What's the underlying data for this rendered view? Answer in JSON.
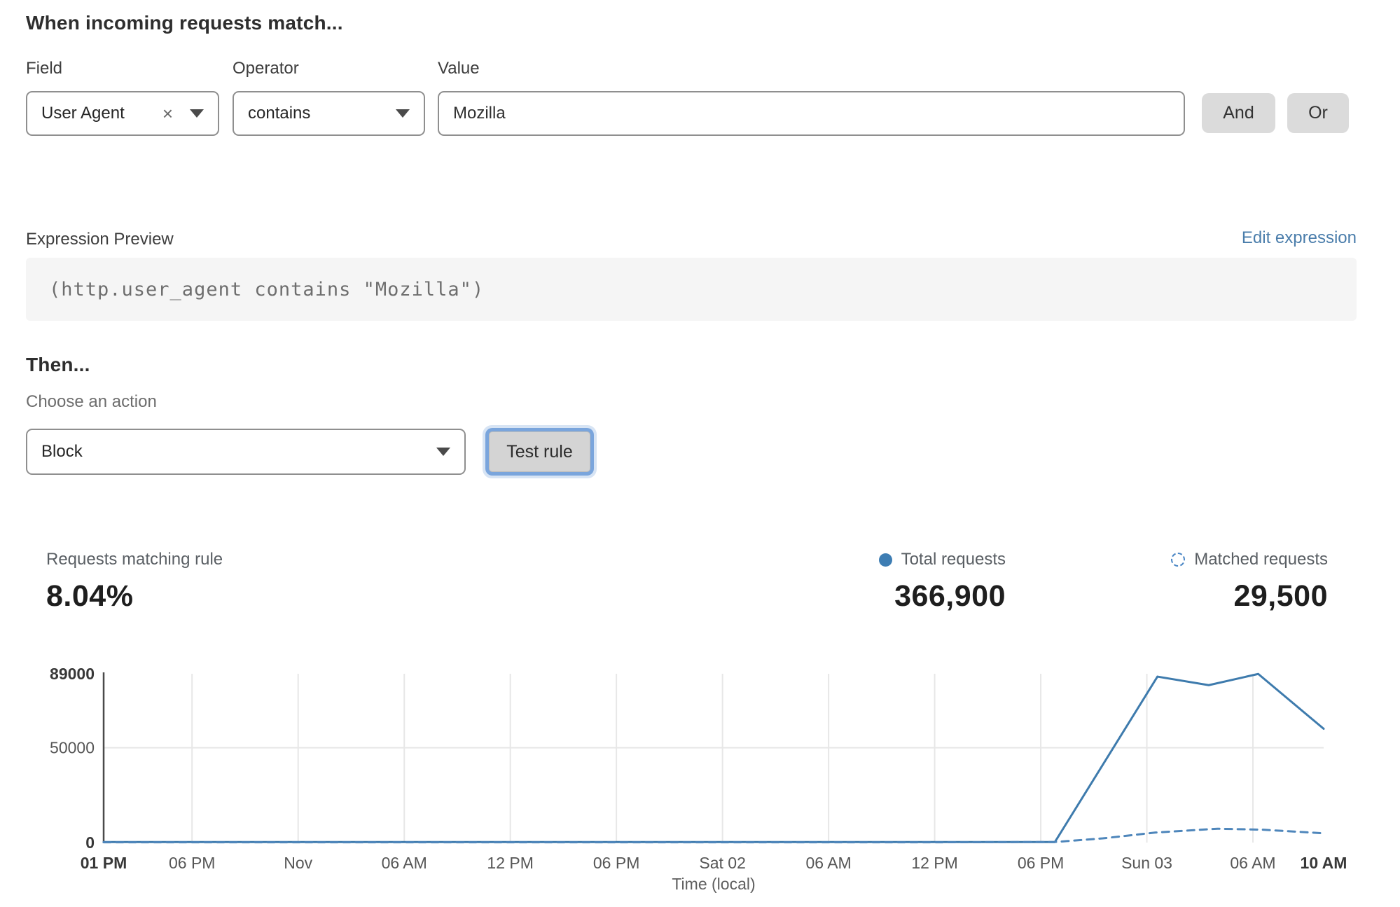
{
  "colors": {
    "accent_blue": "#4a7dab",
    "line_total": "#3e7bad",
    "line_matched": "#4e86bb",
    "legend_dot": "#3d7db3",
    "button_gray": "#dbdbdb",
    "code_bg": "#f5f5f5",
    "focus_ring": "#7aa5dc"
  },
  "match_builder": {
    "title": "When incoming requests match...",
    "field": {
      "label": "Field",
      "value": "User Agent"
    },
    "operator": {
      "label": "Operator",
      "value": "contains"
    },
    "value": {
      "label": "Value",
      "value": "Mozilla"
    },
    "and_label": "And",
    "or_label": "Or"
  },
  "expression": {
    "label": "Expression Preview",
    "edit_link": "Edit expression",
    "code": "(http.user_agent contains \"Mozilla\")"
  },
  "action_section": {
    "title": "Then...",
    "choose_label": "Choose an action",
    "action_value": "Block",
    "test_button": "Test rule"
  },
  "stats": {
    "matching": {
      "label": "Requests matching rule",
      "value": "8.04%"
    },
    "total": {
      "label": "Total requests",
      "value": "366,900"
    },
    "matched": {
      "label": "Matched requests",
      "value": "29,500"
    }
  },
  "chart_data": {
    "type": "line",
    "xlabel": "Time (local)",
    "ylim": [
      0,
      89000
    ],
    "x_hours_total": 69,
    "grid": true,
    "legend_position": "above-right",
    "y_ticks": [
      {
        "v": 0,
        "label": "0",
        "bold": true,
        "grid": false
      },
      {
        "v": 50000,
        "label": "50000",
        "bold": false,
        "grid": true
      },
      {
        "v": 89000,
        "label": "89000",
        "bold": true,
        "grid": false
      }
    ],
    "x_ticks": [
      {
        "h": 0,
        "label": "01 PM",
        "bold": true,
        "grid": false
      },
      {
        "h": 5,
        "label": "06 PM",
        "bold": false,
        "grid": true
      },
      {
        "h": 11,
        "label": "Nov",
        "bold": false,
        "grid": true
      },
      {
        "h": 17,
        "label": "06 AM",
        "bold": false,
        "grid": true
      },
      {
        "h": 23,
        "label": "12 PM",
        "bold": false,
        "grid": true
      },
      {
        "h": 29,
        "label": "06 PM",
        "bold": false,
        "grid": true
      },
      {
        "h": 35,
        "label": "Sat 02",
        "bold": false,
        "grid": true
      },
      {
        "h": 41,
        "label": "06 AM",
        "bold": false,
        "grid": true
      },
      {
        "h": 47,
        "label": "12 PM",
        "bold": false,
        "grid": true
      },
      {
        "h": 53,
        "label": "06 PM",
        "bold": false,
        "grid": true
      },
      {
        "h": 59,
        "label": "Sun 03",
        "bold": false,
        "grid": true
      },
      {
        "h": 65,
        "label": "06 AM",
        "bold": false,
        "grid": true
      },
      {
        "h": 69,
        "label": "10 AM",
        "bold": true,
        "grid": false
      }
    ],
    "series": [
      {
        "name": "Total requests",
        "style": "solid",
        "color": "#3e7bad",
        "points": [
          [
            0,
            300
          ],
          [
            5,
            300
          ],
          [
            11,
            300
          ],
          [
            17,
            300
          ],
          [
            23,
            300
          ],
          [
            29,
            300
          ],
          [
            35,
            300
          ],
          [
            41,
            300
          ],
          [
            47,
            300
          ],
          [
            53.8,
            300
          ],
          [
            59.6,
            87500
          ],
          [
            62.5,
            83000
          ],
          [
            65.3,
            88900
          ],
          [
            69,
            60000
          ]
        ]
      },
      {
        "name": "Matched requests",
        "style": "dashed",
        "color": "#4e86bb",
        "points": [
          [
            0,
            150
          ],
          [
            5,
            150
          ],
          [
            11,
            150
          ],
          [
            17,
            150
          ],
          [
            23,
            150
          ],
          [
            29,
            150
          ],
          [
            35,
            150
          ],
          [
            41,
            150
          ],
          [
            47,
            150
          ],
          [
            53.8,
            300
          ],
          [
            56.5,
            2200
          ],
          [
            59.5,
            5300
          ],
          [
            63,
            7300
          ],
          [
            65.5,
            6800
          ],
          [
            69,
            4900
          ]
        ]
      }
    ]
  }
}
